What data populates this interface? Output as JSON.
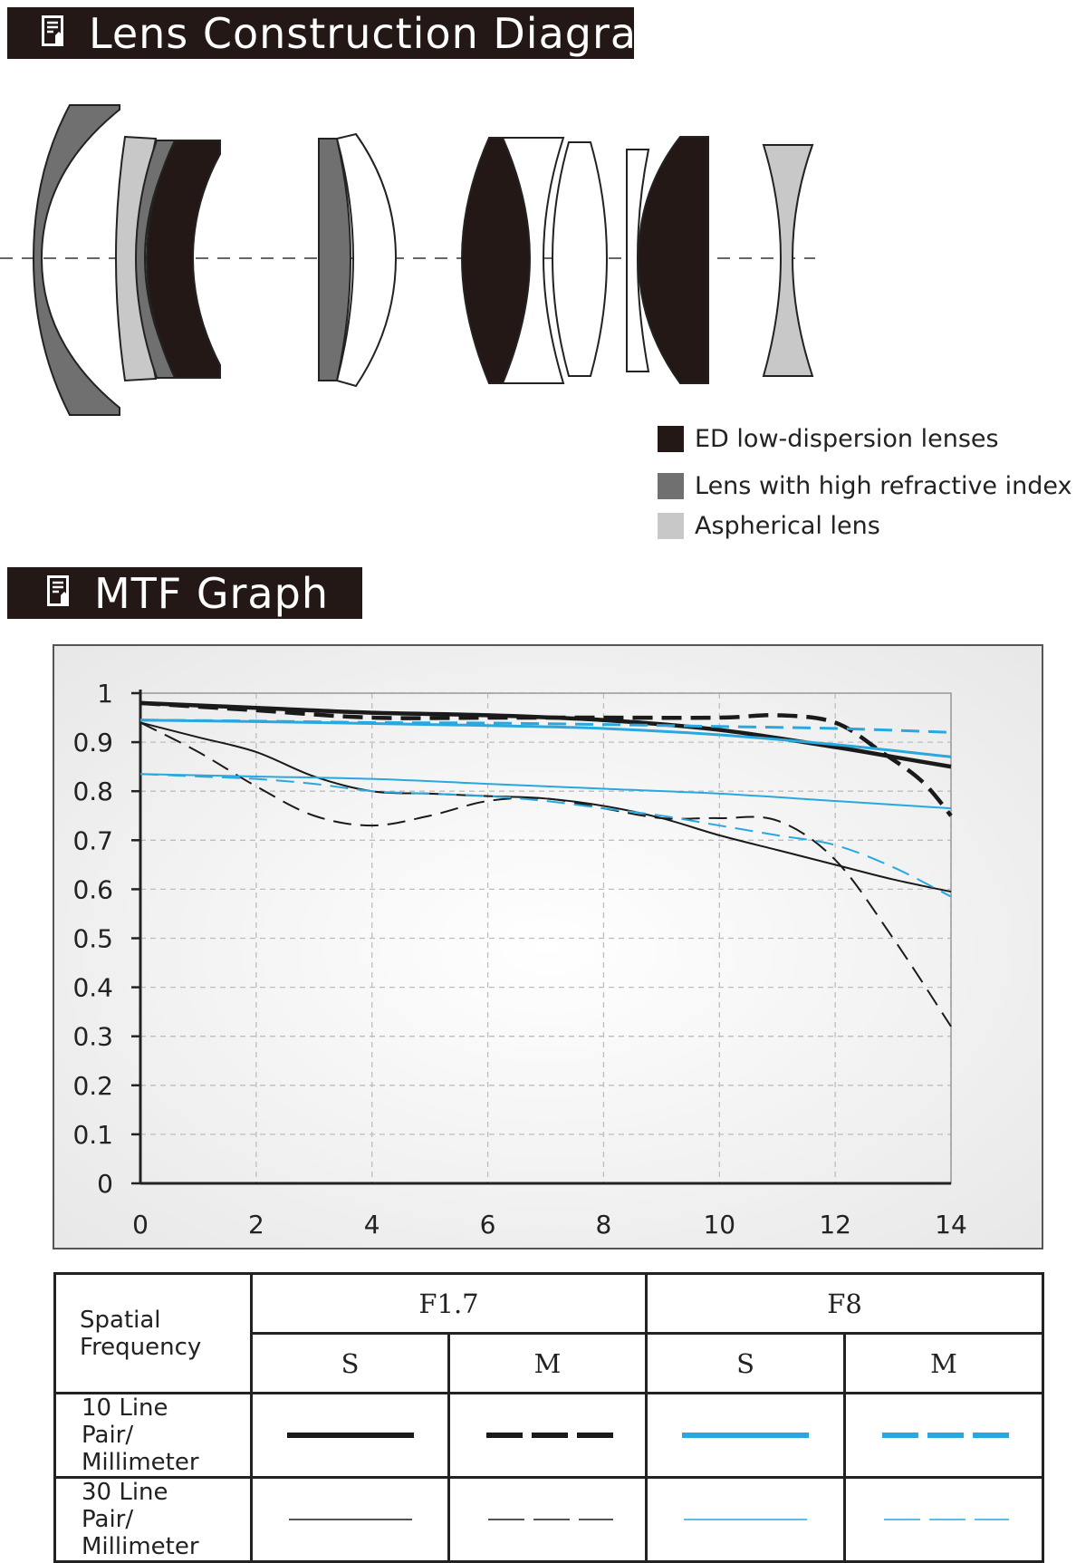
{
  "sections": {
    "lens_title": "Lens Construction Diagram",
    "mtf_title": "MTF Graph"
  },
  "icons": {
    "section_icon": "document-pen-icon"
  },
  "legend": {
    "items": [
      {
        "label": "ED low-dispersion lenses",
        "color": "#231815"
      },
      {
        "label": "Lens with high refractive index",
        "color": "#707070"
      },
      {
        "label": "Aspherical lens",
        "color": "#c8c8c8"
      }
    ]
  },
  "colors": {
    "black_line": "#1a1a1a",
    "blue_line": "#29a8e0",
    "grid": "#bdbdbd"
  },
  "chart_data": {
    "type": "line",
    "title": "",
    "xlabel": "",
    "ylabel": "",
    "xlim": [
      0,
      14
    ],
    "ylim": [
      0,
      1
    ],
    "xticks": [
      0,
      2,
      4,
      6,
      8,
      10,
      12,
      14
    ],
    "yticks": [
      0,
      0.1,
      0.2,
      0.3,
      0.4,
      0.5,
      0.6,
      0.7,
      0.8,
      0.9,
      1
    ],
    "xtick_labels": [
      "0",
      "2",
      "4",
      "6",
      "8",
      "10",
      "12",
      "14"
    ],
    "ytick_labels": [
      "0",
      "0.1",
      "0.2",
      "0.3",
      "0.4",
      "0.5",
      "0.6",
      "0.7",
      "0.8",
      "0.9",
      "1"
    ],
    "grid": true,
    "series": [
      {
        "aperture": "F1.7",
        "frequency": "10 Line Pair/ Millimeter",
        "orientation": "S",
        "color": "#1a1a1a",
        "width": 4.5,
        "dashed": false,
        "x": [
          0,
          2,
          4,
          6,
          8,
          10,
          12,
          13,
          14
        ],
        "y": [
          0.98,
          0.97,
          0.96,
          0.955,
          0.945,
          0.925,
          0.89,
          0.87,
          0.85
        ]
      },
      {
        "aperture": "F1.7",
        "frequency": "10 Line Pair/ Millimeter",
        "orientation": "M",
        "color": "#1a1a1a",
        "width": 4.5,
        "dashed": true,
        "x": [
          0,
          2,
          4,
          6,
          8,
          10,
          11,
          12,
          12.8,
          13.5,
          14
        ],
        "y": [
          0.98,
          0.965,
          0.95,
          0.95,
          0.95,
          0.95,
          0.955,
          0.94,
          0.88,
          0.82,
          0.75
        ]
      },
      {
        "aperture": "F1.7",
        "frequency": "30 Line Pair/ Millimeter",
        "orientation": "S",
        "color": "#1a1a1a",
        "width": 2,
        "dashed": false,
        "x": [
          0,
          1,
          2,
          3,
          4,
          5,
          6,
          7,
          8,
          9,
          10,
          11,
          12,
          13,
          14
        ],
        "y": [
          0.94,
          0.91,
          0.88,
          0.83,
          0.8,
          0.795,
          0.79,
          0.785,
          0.77,
          0.745,
          0.71,
          0.68,
          0.65,
          0.62,
          0.595
        ]
      },
      {
        "aperture": "F1.7",
        "frequency": "30 Line Pair/ Millimeter",
        "orientation": "M",
        "color": "#1a1a1a",
        "width": 2,
        "dashed": true,
        "x": [
          0,
          1,
          2,
          3,
          4,
          5,
          6,
          7,
          8,
          9,
          10,
          11,
          12,
          13,
          14
        ],
        "y": [
          0.94,
          0.88,
          0.81,
          0.75,
          0.73,
          0.75,
          0.78,
          0.785,
          0.765,
          0.745,
          0.745,
          0.74,
          0.66,
          0.5,
          0.32
        ]
      },
      {
        "aperture": "F8",
        "frequency": "10 Line Pair/ Millimeter",
        "orientation": "S",
        "color": "#29a8e0",
        "width": 3,
        "dashed": false,
        "x": [
          0,
          2,
          4,
          6,
          8,
          10,
          12,
          14
        ],
        "y": [
          0.945,
          0.942,
          0.938,
          0.934,
          0.928,
          0.915,
          0.895,
          0.87
        ]
      },
      {
        "aperture": "F8",
        "frequency": "10 Line Pair/ Millimeter",
        "orientation": "M",
        "color": "#29a8e0",
        "width": 3,
        "dashed": true,
        "x": [
          0,
          2,
          4,
          6,
          8,
          10,
          12,
          14
        ],
        "y": [
          0.945,
          0.943,
          0.94,
          0.939,
          0.936,
          0.932,
          0.928,
          0.92
        ]
      },
      {
        "aperture": "F8",
        "frequency": "30 Line Pair/ Millimeter",
        "orientation": "S",
        "color": "#29a8e0",
        "width": 2,
        "dashed": false,
        "x": [
          0,
          2,
          4,
          6,
          8,
          10,
          12,
          14
        ],
        "y": [
          0.835,
          0.83,
          0.825,
          0.815,
          0.805,
          0.795,
          0.78,
          0.765
        ]
      },
      {
        "aperture": "F8",
        "frequency": "30 Line Pair/ Millimeter",
        "orientation": "M",
        "color": "#29a8e0",
        "width": 2,
        "dashed": true,
        "x": [
          0,
          1,
          2,
          3,
          4,
          5,
          6,
          7,
          8,
          9,
          10,
          11,
          12,
          13,
          14
        ],
        "y": [
          0.835,
          0.83,
          0.825,
          0.815,
          0.8,
          0.795,
          0.79,
          0.78,
          0.765,
          0.75,
          0.73,
          0.71,
          0.69,
          0.645,
          0.585
        ]
      }
    ]
  },
  "key_table": {
    "corner": "Spatial Frequency",
    "apertures": [
      "F1.7",
      "F8"
    ],
    "orientations": [
      "S",
      "M",
      "S",
      "M"
    ],
    "rows": [
      {
        "label": "10 Line Pair/ Millimeter"
      },
      {
        "label": "30 Line Pair/ Millimeter"
      }
    ]
  }
}
